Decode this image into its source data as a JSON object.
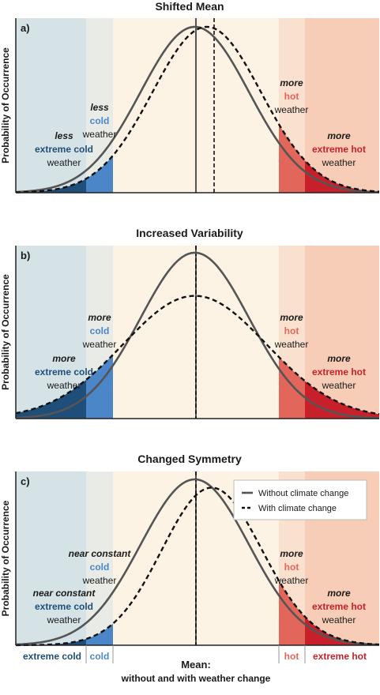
{
  "chart_data": [
    {
      "type": "area",
      "panel_label": "a)",
      "title": "Shifted Mean",
      "ylabel": "Probability of Occurrence",
      "regions": {
        "extreme_cold": "#d5e3e6",
        "cold": "#e8ebe6",
        "normal": "#fdf3e5",
        "hot": "#fae0cf",
        "extreme_hot": "#f7cdb8"
      },
      "series": [
        {
          "name": "Without climate change",
          "style": "solid",
          "color": "#555555",
          "mean": 0.0,
          "sd": 1.0,
          "skew": 0,
          "relative_peak": 1.0
        },
        {
          "name": "With climate change",
          "style": "dashed",
          "color": "#111111",
          "mean": 0.22,
          "sd": 1.0,
          "skew": 0,
          "relative_peak": 1.0
        }
      ],
      "thresholds": {
        "extreme_cold": -2.3,
        "cold": -1.05,
        "hot": 1.05,
        "extreme_hot": 1.4
      },
      "shaded": {
        "cold": "#4a86c8",
        "extreme_cold": "#1f4e7a",
        "hot": "#e2675a",
        "extreme_hot": "#c8202a"
      },
      "annotations": [
        {
          "lines": [
            {
              "t": "less",
              "s": "i"
            },
            {
              "t": "extreme cold",
              "s": "b",
              "c": "#1f4e7a"
            },
            {
              "t": "weather",
              "s": "n"
            }
          ]
        },
        {
          "lines": [
            {
              "t": "less",
              "s": "i"
            },
            {
              "t": "cold",
              "s": "b",
              "c": "#4a86c8"
            },
            {
              "t": "weather",
              "s": "n"
            }
          ]
        },
        {
          "lines": [
            {
              "t": "more",
              "s": "i"
            },
            {
              "t": "hot",
              "s": "b",
              "c": "#e2675a"
            },
            {
              "t": "weather",
              "s": "n"
            }
          ]
        },
        {
          "lines": [
            {
              "t": "more",
              "s": "i"
            },
            {
              "t": "extreme hot",
              "s": "b",
              "c": "#c8202a"
            },
            {
              "t": "weather",
              "s": "n"
            }
          ]
        }
      ]
    },
    {
      "type": "area",
      "panel_label": "b)",
      "title": "Increased Variability",
      "ylabel": "Probability of Occurrence",
      "series": [
        {
          "name": "Without climate change",
          "style": "solid",
          "color": "#555555",
          "mean": 0.0,
          "sd": 1.0,
          "skew": 0,
          "relative_peak": 1.0
        },
        {
          "name": "With climate change",
          "style": "dashed",
          "color": "#111111",
          "mean": 0.0,
          "sd": 1.32,
          "skew": 0,
          "relative_peak": 0.74
        }
      ],
      "annotations": [
        {
          "lines": [
            {
              "t": "more",
              "s": "i"
            },
            {
              "t": "extreme cold",
              "s": "b",
              "c": "#1f4e7a"
            },
            {
              "t": "weather",
              "s": "n"
            }
          ]
        },
        {
          "lines": [
            {
              "t": "more",
              "s": "i"
            },
            {
              "t": "cold",
              "s": "b",
              "c": "#4a86c8"
            },
            {
              "t": "weather",
              "s": "n"
            }
          ]
        },
        {
          "lines": [
            {
              "t": "more",
              "s": "i"
            },
            {
              "t": "hot",
              "s": "b",
              "c": "#e2675a"
            },
            {
              "t": "weather",
              "s": "n"
            }
          ]
        },
        {
          "lines": [
            {
              "t": "more",
              "s": "i"
            },
            {
              "t": "extreme hot",
              "s": "b",
              "c": "#c8202a"
            },
            {
              "t": "weather",
              "s": "n"
            }
          ]
        }
      ]
    },
    {
      "type": "area",
      "panel_label": "c)",
      "title": "Changed Symmetry",
      "ylabel": "Probability of Occurrence",
      "legend_position": "top-right",
      "series": [
        {
          "name": "Without climate change",
          "style": "solid",
          "color": "#555555",
          "mean": 0.0,
          "sd": 1.0,
          "skew": 0,
          "relative_peak": 1.0
        },
        {
          "name": "With climate change",
          "style": "dashed",
          "color": "#111111",
          "mean": -0.06,
          "sd": 1.0,
          "skew": 0.55,
          "relative_peak": 0.95
        }
      ],
      "annotations": [
        {
          "lines": [
            {
              "t": "near constant",
              "s": "i"
            },
            {
              "t": "extreme cold",
              "s": "b",
              "c": "#1f4e7a"
            },
            {
              "t": "weather",
              "s": "n"
            }
          ]
        },
        {
          "lines": [
            {
              "t": "near constant",
              "s": "i"
            },
            {
              "t": "cold",
              "s": "b",
              "c": "#4a86c8"
            },
            {
              "t": "weather",
              "s": "n"
            }
          ]
        },
        {
          "lines": [
            {
              "t": "more",
              "s": "i"
            },
            {
              "t": "hot",
              "s": "b",
              "c": "#e2675a"
            },
            {
              "t": "weather",
              "s": "n"
            }
          ]
        },
        {
          "lines": [
            {
              "t": "more",
              "s": "i"
            },
            {
              "t": "extreme hot",
              "s": "b",
              "c": "#c8202a"
            },
            {
              "t": "weather",
              "s": "n"
            }
          ]
        }
      ],
      "legend": [
        "Without climate change",
        "With climate change"
      ]
    }
  ],
  "x_axis": {
    "region_labels": [
      {
        "text": "extreme cold",
        "color": "#1f4e7a"
      },
      {
        "text": "cold",
        "color": "#4a86c8"
      },
      {
        "text": "hot",
        "color": "#e2675a"
      },
      {
        "text": "extreme hot",
        "color": "#c8202a"
      }
    ],
    "mean_label": "Mean:",
    "mean_sublabel": "without and with weather change"
  }
}
